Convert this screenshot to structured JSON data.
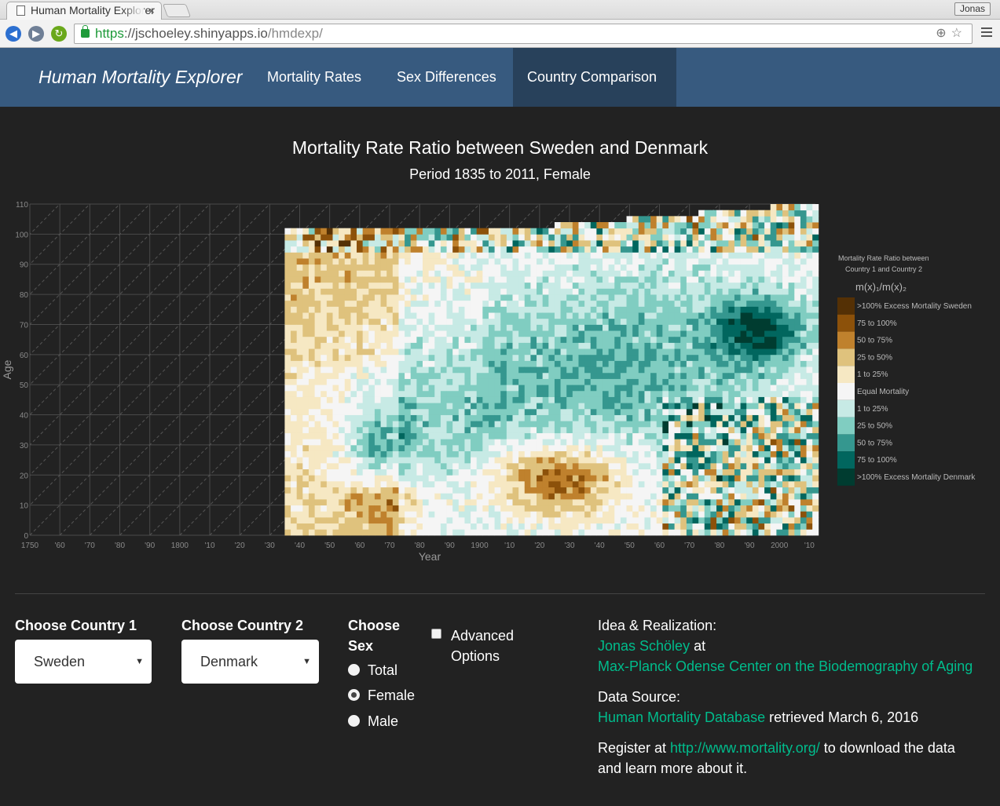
{
  "browser": {
    "tab_title": "Human Mortality Explorer",
    "tab_close": "×",
    "user": "Jonas",
    "url_scheme": "https",
    "url_host": "://jschoeley.shinyapps.io",
    "url_path": "/hmdexp/"
  },
  "navbar": {
    "brand": "Human Mortality Explorer",
    "links": [
      "Mortality Rates",
      "Sex Differences",
      "Country Comparison"
    ],
    "active": "Country Comparison"
  },
  "chart_heading": {
    "title": "Mortality Rate Ratio between Sweden and Denmark",
    "subtitle": "Period 1835 to 2011, Female"
  },
  "chart_data": {
    "type": "heatmap",
    "xlabel": "Year",
    "ylabel": "Age",
    "x_range": [
      1750,
      2012
    ],
    "y_range": [
      0,
      110
    ],
    "data_year_range": [
      1835,
      2011
    ],
    "data_age_range": [
      0,
      110
    ],
    "x_ticks": [
      1750,
      1760,
      1770,
      1780,
      1790,
      1800,
      1810,
      1820,
      1830,
      1840,
      1850,
      1860,
      1870,
      1880,
      1890,
      1900,
      1910,
      1920,
      1930,
      1940,
      1950,
      1960,
      1970,
      1980,
      1990,
      2000,
      2010
    ],
    "x_tick_labels": [
      "1750",
      "'60",
      "'70",
      "'80",
      "'90",
      "1800",
      "'10",
      "'20",
      "'30",
      "'40",
      "'50",
      "'60",
      "'70",
      "'80",
      "'90",
      "1900",
      "'10",
      "'20",
      "'30",
      "'40",
      "'50",
      "'60",
      "'70",
      "'80",
      "'90",
      "2000",
      "'10"
    ],
    "y_ticks": [
      0,
      10,
      20,
      30,
      40,
      50,
      60,
      70,
      80,
      90,
      100,
      110
    ],
    "grid": true,
    "legend": {
      "title_line1": "Mortality Rate Ratio between",
      "title_line2": "Country 1 and Country 2",
      "formula": "m(x)₁/m(x)₂",
      "placement": "right",
      "items": [
        {
          "label": ">100% Excess Mortality Sweden",
          "color": "#543005"
        },
        {
          "label": "75 to 100%",
          "color": "#8c510a"
        },
        {
          "label": "50 to 75%",
          "color": "#bf812d"
        },
        {
          "label": "25 to 50%",
          "color": "#dfc27d"
        },
        {
          "label": "1 to 25%",
          "color": "#f6e8c3"
        },
        {
          "label": "Equal Mortality",
          "color": "#f5f5f5"
        },
        {
          "label": "1 to 25%",
          "color": "#c7eae5"
        },
        {
          "label": "25 to 50%",
          "color": "#80cdc1"
        },
        {
          "label": "50 to 75%",
          "color": "#35978f"
        },
        {
          "label": "75 to 100%",
          "color": "#01665e"
        },
        {
          "label": ">100% Excess Mortality Denmark",
          "color": "#003c30"
        }
      ]
    }
  },
  "controls": {
    "country1_label": "Choose Country 1",
    "country1_value": "Sweden",
    "country2_label": "Choose Country 2",
    "country2_value": "Denmark",
    "sex_label_line1": "Choose",
    "sex_label_line2": "Sex",
    "sex_options": [
      "Total",
      "Female",
      "Male"
    ],
    "sex_selected": "Female",
    "advanced_line1": "Advanced",
    "advanced_line2": "Options",
    "select_arrow": "▼"
  },
  "info": {
    "idea_label": "Idea & Realization:",
    "author": "Jonas Schöley",
    "at": " at",
    "institute": "Max-Planck Odense Center on the Biodemography of Aging",
    "source_label": "Data Source:",
    "source": "Human Mortality Database",
    "retrieved": " retrieved March 6, 2016",
    "register_prefix": "Register at ",
    "register_url": "http://www.mortality.org/",
    "register_suffix": " to download the data",
    "register_line2": "and learn more about it."
  },
  "colors": {
    "navbar": "#375a7f",
    "navbar_active": "#28415b",
    "background": "#222222",
    "link": "#00bc8c"
  }
}
